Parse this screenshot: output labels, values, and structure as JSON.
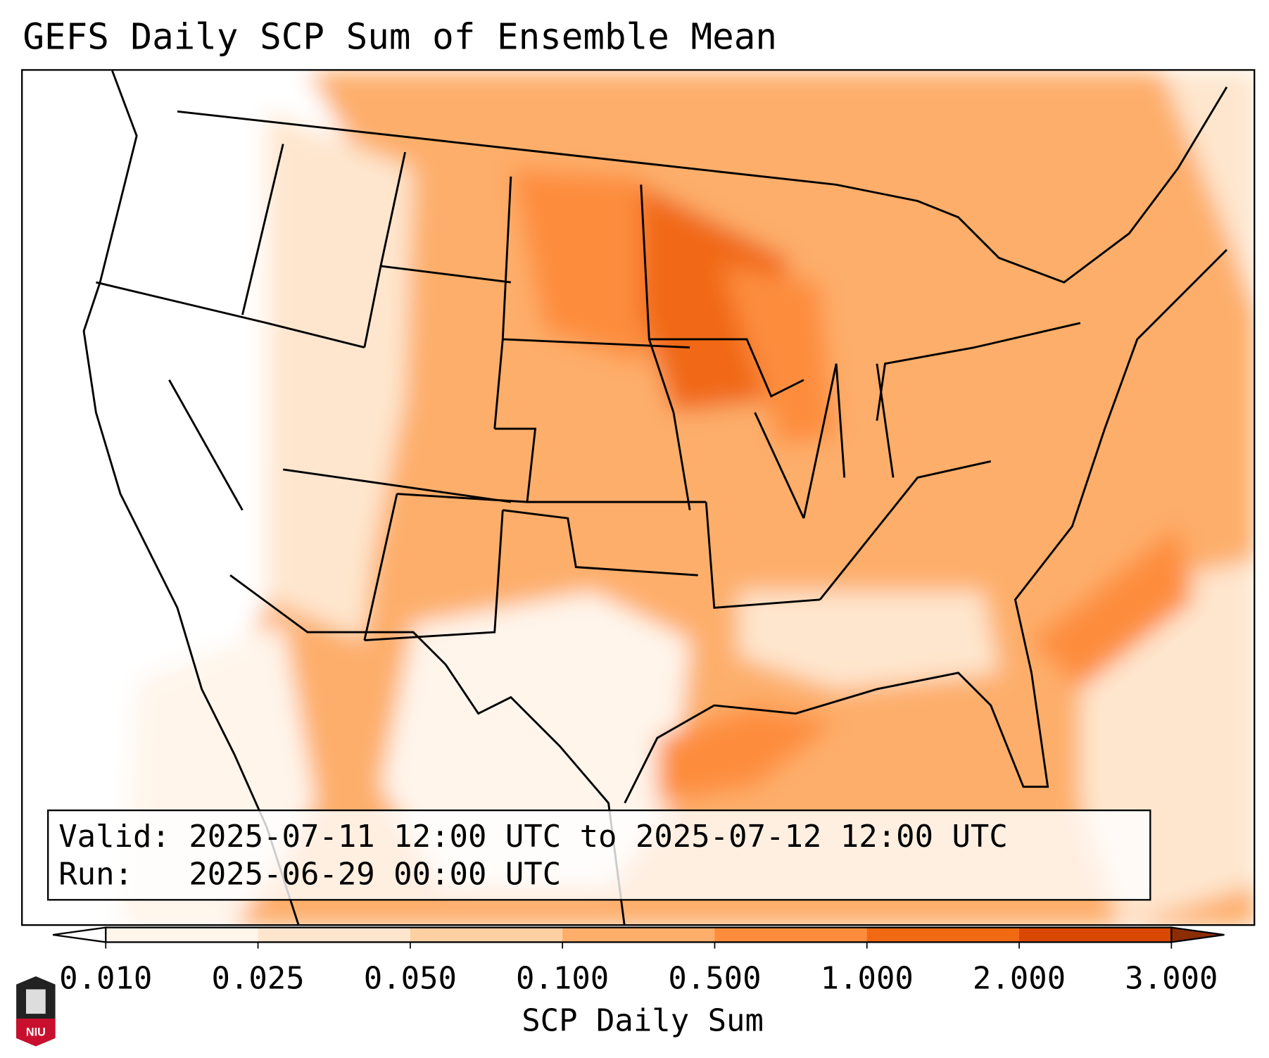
{
  "title": "GEFS Daily SCP Sum of Ensemble Mean",
  "info": {
    "valid": "Valid: 2025-07-11 12:00 UTC to 2025-07-12 12:00 UTC",
    "run": "Run:   2025-06-29 00:00 UTC"
  },
  "colorbar": {
    "label": "SCP Daily Sum",
    "ticks": [
      "0.010",
      "0.025",
      "0.050",
      "0.100",
      "0.500",
      "1.000",
      "2.000",
      "3.000"
    ],
    "colors": [
      "#ffffff",
      "#fff5eb",
      "#fee6ce",
      "#fdd0a2",
      "#fdae6b",
      "#fd8d3c",
      "#f16913",
      "#d94801",
      "#8c2d04"
    ]
  },
  "logo": {
    "text": "NIU"
  }
}
